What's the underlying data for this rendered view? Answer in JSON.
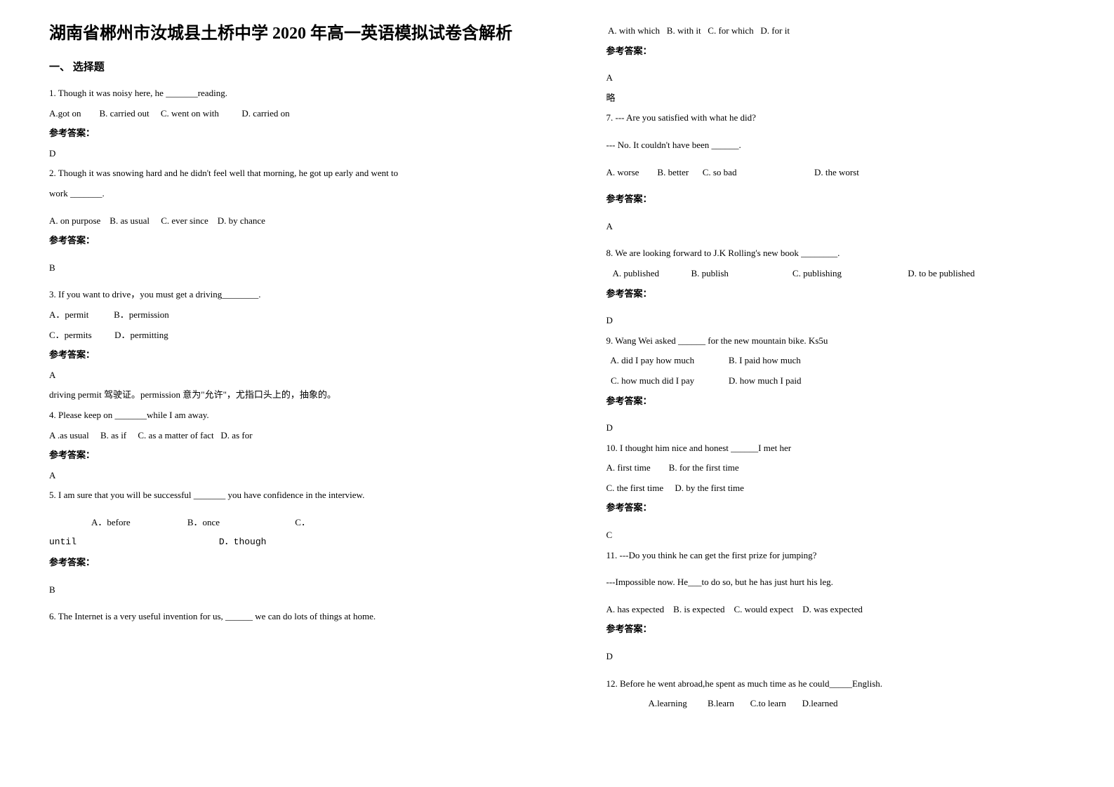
{
  "title": "湖南省郴州市汝城县土桥中学 2020 年高一英语模拟试卷含解析",
  "section1": "一、 选择题",
  "q1": {
    "text": "1. Though it was noisy here, he _______reading.",
    "opts": "A.got on        B. carried out     C. went on with          D. carried on",
    "ansLabel": "参考答案：",
    "ans": "D"
  },
  "q2": {
    "text1": "2. Though it was snowing hard and he didn't feel well that morning, he got up early and went to",
    "text2": "work _______.",
    "opts": "A. on purpose    B. as usual     C. ever since    D. by chance",
    "ansLabel": "参考答案：",
    "ans": "B"
  },
  "q3": {
    "text": "3. If you want to drive，you must get a driving________.",
    "opts1": "A．permit           B．permission",
    "opts2": "C．permits          D．permitting",
    "ansLabel": "参考答案：",
    "ans": "A",
    "note": "driving permit 驾驶证。permission 意为\"允许\"，尤指口头上的，抽象的。"
  },
  "q4": {
    "text": "4. Please keep on _______while I am away.",
    "opts": "A .as usual     B. as if     C. as a matter of fact   D. as for",
    "ansLabel": "参考答案：",
    "ans": "A"
  },
  "q5": {
    "text": "5. I am sure that you will be successful _______ you have confidence in the interview.",
    "opts1": "A．before                         B．once                                 C．",
    "opts2": "until                          D．though",
    "ansLabel": "参考答案：",
    "ans": "B"
  },
  "q6": {
    "text": "6. The Internet is a very useful invention for us, ______ we can do lots of things at home.",
    "opts": " A. with which   B. with it   C. for which   D. for it",
    "ansLabel": "参考答案：",
    "ans": "A",
    "note": "略"
  },
  "q7": {
    "text1": "7. --- Are you satisfied with what he did?",
    "text2": "--- No. It couldn't have been ______.",
    "opts": "A. worse        B. better      C. so bad                                  D. the worst",
    "ansLabel": "参考答案：",
    "ans": "A"
  },
  "q8": {
    "text": "8. We are looking forward to J.K Rolling's new book ________.",
    "opts": "   A. published              B. publish                            C. publishing                             D. to be published",
    "ansLabel": "参考答案：",
    "ans": "D"
  },
  "q9": {
    "text": "9. Wang Wei asked ______ for the new mountain bike. Ks5u",
    "opts1": "  A. did I pay how much               B. I paid how much",
    "opts2": "  C. how much did I pay               D. how much I paid",
    "ansLabel": "参考答案：",
    "ans": "D"
  },
  "q10": {
    "text": "10. I thought him nice and honest ______I met her",
    "opts1": "A. first time        B. for the first time",
    "opts2": "C. the first time     D. by the first time",
    "ansLabel": "参考答案：",
    "ans": "C"
  },
  "q11": {
    "text1": "11. ---Do you think he can get the first prize for jumping?",
    "text2": "---Impossible now. He___to do so, but he has just hurt his leg.",
    "opts": "A. has expected    B. is expected    C. would expect    D. was expected",
    "ansLabel": "参考答案：",
    "ans": "D"
  },
  "q12": {
    "text": "12. Before he went abroad,he spent as much time as he could_____English.",
    "opts": "A.learning         B.learn       C.to learn       D.learned"
  }
}
